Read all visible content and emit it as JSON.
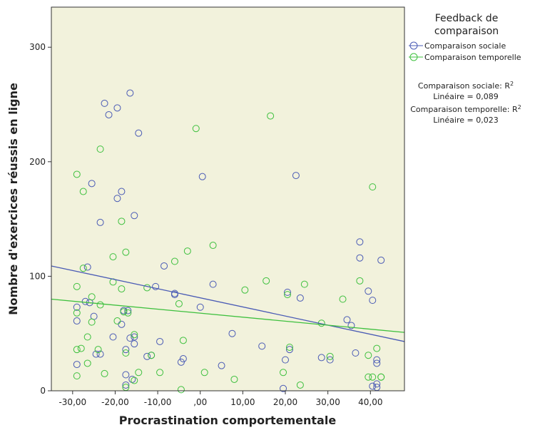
{
  "chart_data": {
    "type": "scatter",
    "xlabel": "Procrastination comportementale",
    "ylabel": "Nombre d'exercices réussis en ligne",
    "xlim": [
      -35,
      48
    ],
    "ylim": [
      0,
      335
    ],
    "x_ticks": [
      -30,
      -20,
      -10,
      0,
      10,
      20,
      30,
      40
    ],
    "x_tick_labels": [
      "-30,00",
      "-20,00",
      "-10,00",
      ",00",
      "10,00",
      "20,00",
      "30,00",
      "40,00"
    ],
    "y_ticks": [
      0,
      100,
      200,
      300
    ],
    "y_tick_labels": [
      "0",
      "100",
      "200",
      "300"
    ],
    "grid": false,
    "legend": {
      "title_line1": "Feedback de",
      "title_line2": "comparaison",
      "placement": "right"
    },
    "annotations": {
      "line1": "Comparaison sociale: R",
      "line2": "Linéaire = 0,089",
      "line3": "Comparaison temporelle: R",
      "line4": "Linéaire = 0,023",
      "sup": "2"
    },
    "series": [
      {
        "name": "Comparaison sociale",
        "color": "#4a5bb5",
        "fit": {
          "type": "linear",
          "x": [
            -35,
            48
          ],
          "y": [
            109,
            43
          ]
        },
        "points": [
          [
            -29,
            73
          ],
          [
            -29,
            61
          ],
          [
            -29,
            23
          ],
          [
            -27,
            78
          ],
          [
            -26.5,
            108
          ],
          [
            -26,
            77
          ],
          [
            -25,
            65
          ],
          [
            -25.5,
            181
          ],
          [
            -24.5,
            32
          ],
          [
            -23.5,
            32
          ],
          [
            -23.5,
            147
          ],
          [
            -22.5,
            251
          ],
          [
            -21.5,
            241
          ],
          [
            -20.5,
            47
          ],
          [
            -19.5,
            247
          ],
          [
            -19.5,
            168
          ],
          [
            -18.5,
            174
          ],
          [
            -18.5,
            58
          ],
          [
            -18,
            70
          ],
          [
            -17.5,
            36
          ],
          [
            -17.5,
            14
          ],
          [
            -17.5,
            5
          ],
          [
            -17,
            70
          ],
          [
            -16.5,
            260
          ],
          [
            -16.5,
            46
          ],
          [
            -16,
            10
          ],
          [
            -15.5,
            153
          ],
          [
            -15.5,
            41
          ],
          [
            -15.5,
            47
          ],
          [
            -14.5,
            225
          ],
          [
            -12.5,
            30
          ],
          [
            -11.5,
            31
          ],
          [
            -10.5,
            91
          ],
          [
            -9.5,
            43
          ],
          [
            -8.5,
            109
          ],
          [
            -6,
            85
          ],
          [
            -6,
            84
          ],
          [
            -4.5,
            25
          ],
          [
            -4,
            28
          ],
          [
            0,
            73
          ],
          [
            0.5,
            187
          ],
          [
            3,
            93
          ],
          [
            5,
            22
          ],
          [
            7.5,
            50
          ],
          [
            14.5,
            39
          ],
          [
            19.5,
            2
          ],
          [
            20,
            27
          ],
          [
            20.5,
            86
          ],
          [
            21,
            36
          ],
          [
            22.5,
            188
          ],
          [
            23.5,
            81
          ],
          [
            28.5,
            29
          ],
          [
            30.5,
            27
          ],
          [
            34.5,
            62
          ],
          [
            35.5,
            57
          ],
          [
            36.5,
            33
          ],
          [
            37.5,
            130
          ],
          [
            37.5,
            116
          ],
          [
            39.5,
            87
          ],
          [
            40.5,
            79
          ],
          [
            40.5,
            4
          ],
          [
            41.5,
            27
          ],
          [
            41.5,
            24
          ],
          [
            41.5,
            6
          ],
          [
            41.5,
            3
          ],
          [
            42.5,
            114
          ]
        ]
      },
      {
        "name": "Comparaison temporelle",
        "color": "#3ec03e",
        "fit": {
          "type": "linear",
          "x": [
            -35,
            48
          ],
          "y": [
            80,
            51
          ]
        },
        "points": [
          [
            -29,
            189
          ],
          [
            -29,
            91
          ],
          [
            -29,
            68
          ],
          [
            -29,
            36
          ],
          [
            -29,
            13
          ],
          [
            -28,
            37
          ],
          [
            -27.5,
            174
          ],
          [
            -27.5,
            107
          ],
          [
            -26.5,
            47
          ],
          [
            -26.5,
            24
          ],
          [
            -25.5,
            82
          ],
          [
            -25.5,
            60
          ],
          [
            -24,
            36
          ],
          [
            -23.5,
            211
          ],
          [
            -23.5,
            75
          ],
          [
            -22.5,
            15
          ],
          [
            -20.5,
            117
          ],
          [
            -20.5,
            95
          ],
          [
            -19.5,
            61
          ],
          [
            -18.5,
            148
          ],
          [
            -18.5,
            89
          ],
          [
            -18,
            69
          ],
          [
            -17.5,
            121
          ],
          [
            -17.5,
            33
          ],
          [
            -17.5,
            3
          ],
          [
            -17,
            68
          ],
          [
            -15.5,
            49
          ],
          [
            -15.5,
            9
          ],
          [
            -14.5,
            16
          ],
          [
            -12.5,
            90
          ],
          [
            -11.5,
            31
          ],
          [
            -9.5,
            16
          ],
          [
            -6,
            113
          ],
          [
            -5,
            76
          ],
          [
            -4.5,
            1
          ],
          [
            -4,
            44
          ],
          [
            -3,
            122
          ],
          [
            -1,
            229
          ],
          [
            1,
            16
          ],
          [
            3,
            127
          ],
          [
            8,
            10
          ],
          [
            10.5,
            88
          ],
          [
            15.5,
            96
          ],
          [
            16.5,
            240
          ],
          [
            19.5,
            16
          ],
          [
            20.5,
            84
          ],
          [
            21,
            38
          ],
          [
            23.5,
            5
          ],
          [
            24.5,
            93
          ],
          [
            28.5,
            59
          ],
          [
            30.5,
            30
          ],
          [
            33.5,
            80
          ],
          [
            37.5,
            96
          ],
          [
            39.5,
            31
          ],
          [
            39.5,
            12
          ],
          [
            40.5,
            178
          ],
          [
            40.5,
            12
          ],
          [
            41.5,
            37
          ],
          [
            42.5,
            12
          ],
          [
            42.5,
            12
          ]
        ]
      }
    ]
  }
}
